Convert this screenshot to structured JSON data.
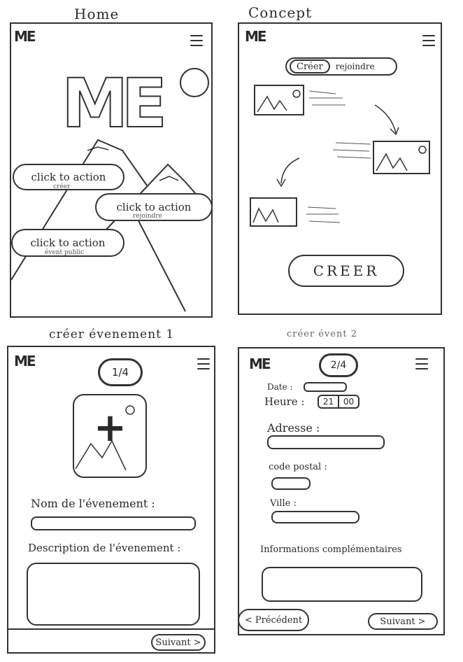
{
  "titles": {
    "home": "Home",
    "concept": "Concept",
    "create1": "créer évenement 1",
    "create2": "créer évent 2"
  },
  "logo": "ME",
  "home": {
    "big_logo": "ME",
    "cta1": {
      "label": "click to action",
      "sub": "créer"
    },
    "cta2": {
      "label": "click to action",
      "sub": "rejoindre"
    },
    "cta3": {
      "label": "click to action",
      "sub": "évent public"
    }
  },
  "concept": {
    "tab_create": "Créer",
    "tab_join": "rejoindre",
    "create_button": "CREER"
  },
  "create1": {
    "step": "1/4",
    "image_add_symbol": "+",
    "name_label": "Nom de l'évenement :",
    "description_label": "Description de l'évenement :",
    "next_button": "Suivant >"
  },
  "create2": {
    "step": "2/4",
    "date_label": "Date :",
    "time_label": "Heure :",
    "time_hours": "21",
    "time_minutes": "00",
    "address_label": "Adresse :",
    "postal_label": "code postal :",
    "city_label": "Ville :",
    "info_label": "Informations complémentaires",
    "prev_button": "< Précédent",
    "next_button": "Suivant >"
  }
}
